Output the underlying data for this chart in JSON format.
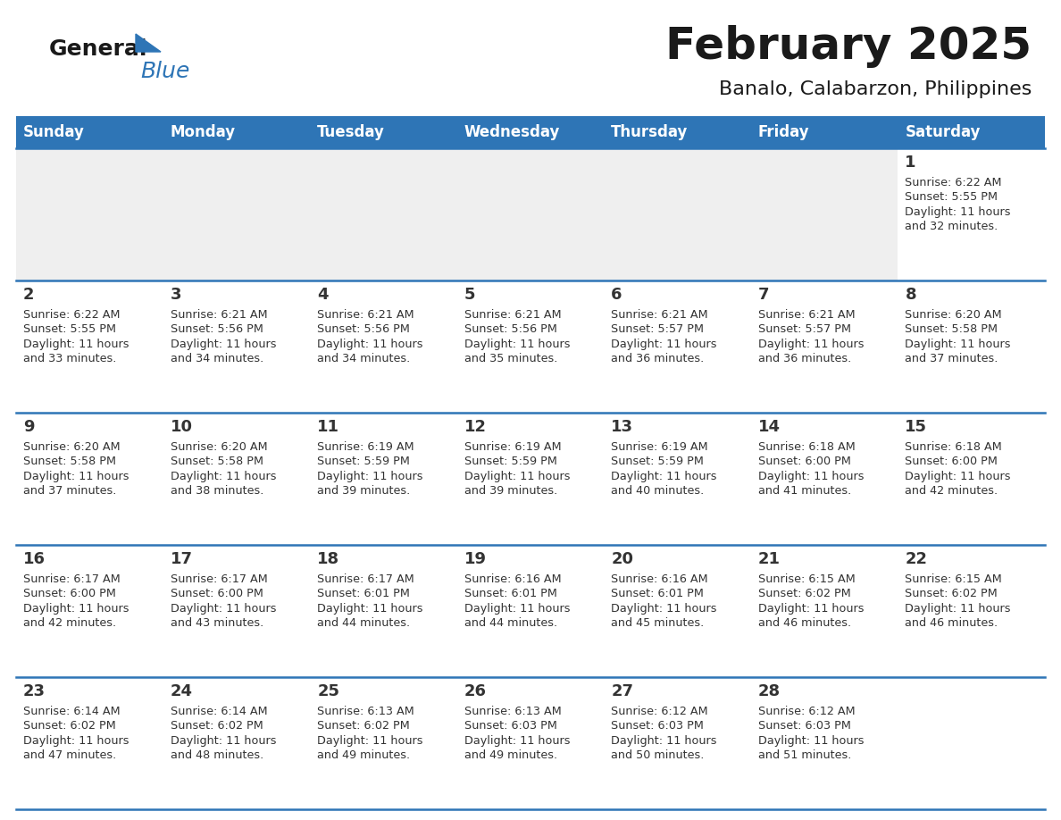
{
  "title": "February 2025",
  "subtitle": "Banalo, Calabarzon, Philippines",
  "days_of_week": [
    "Sunday",
    "Monday",
    "Tuesday",
    "Wednesday",
    "Thursday",
    "Friday",
    "Saturday"
  ],
  "header_bg": "#2e75b6",
  "header_text_color": "#ffffff",
  "cell_bg_light": "#efefef",
  "cell_bg_white": "#ffffff",
  "divider_color": "#2e75b6",
  "text_color": "#333333",
  "title_color": "#1a1a1a",
  "weeks": [
    [
      {
        "day": null,
        "info": null
      },
      {
        "day": null,
        "info": null
      },
      {
        "day": null,
        "info": null
      },
      {
        "day": null,
        "info": null
      },
      {
        "day": null,
        "info": null
      },
      {
        "day": null,
        "info": null
      },
      {
        "day": 1,
        "sunrise": "6:22 AM",
        "sunset": "5:55 PM",
        "dl1": "Daylight: 11 hours",
        "dl2": "and 32 minutes."
      }
    ],
    [
      {
        "day": 2,
        "sunrise": "6:22 AM",
        "sunset": "5:55 PM",
        "dl1": "Daylight: 11 hours",
        "dl2": "and 33 minutes."
      },
      {
        "day": 3,
        "sunrise": "6:21 AM",
        "sunset": "5:56 PM",
        "dl1": "Daylight: 11 hours",
        "dl2": "and 34 minutes."
      },
      {
        "day": 4,
        "sunrise": "6:21 AM",
        "sunset": "5:56 PM",
        "dl1": "Daylight: 11 hours",
        "dl2": "and 34 minutes."
      },
      {
        "day": 5,
        "sunrise": "6:21 AM",
        "sunset": "5:56 PM",
        "dl1": "Daylight: 11 hours",
        "dl2": "and 35 minutes."
      },
      {
        "day": 6,
        "sunrise": "6:21 AM",
        "sunset": "5:57 PM",
        "dl1": "Daylight: 11 hours",
        "dl2": "and 36 minutes."
      },
      {
        "day": 7,
        "sunrise": "6:21 AM",
        "sunset": "5:57 PM",
        "dl1": "Daylight: 11 hours",
        "dl2": "and 36 minutes."
      },
      {
        "day": 8,
        "sunrise": "6:20 AM",
        "sunset": "5:58 PM",
        "dl1": "Daylight: 11 hours",
        "dl2": "and 37 minutes."
      }
    ],
    [
      {
        "day": 9,
        "sunrise": "6:20 AM",
        "sunset": "5:58 PM",
        "dl1": "Daylight: 11 hours",
        "dl2": "and 37 minutes."
      },
      {
        "day": 10,
        "sunrise": "6:20 AM",
        "sunset": "5:58 PM",
        "dl1": "Daylight: 11 hours",
        "dl2": "and 38 minutes."
      },
      {
        "day": 11,
        "sunrise": "6:19 AM",
        "sunset": "5:59 PM",
        "dl1": "Daylight: 11 hours",
        "dl2": "and 39 minutes."
      },
      {
        "day": 12,
        "sunrise": "6:19 AM",
        "sunset": "5:59 PM",
        "dl1": "Daylight: 11 hours",
        "dl2": "and 39 minutes."
      },
      {
        "day": 13,
        "sunrise": "6:19 AM",
        "sunset": "5:59 PM",
        "dl1": "Daylight: 11 hours",
        "dl2": "and 40 minutes."
      },
      {
        "day": 14,
        "sunrise": "6:18 AM",
        "sunset": "6:00 PM",
        "dl1": "Daylight: 11 hours",
        "dl2": "and 41 minutes."
      },
      {
        "day": 15,
        "sunrise": "6:18 AM",
        "sunset": "6:00 PM",
        "dl1": "Daylight: 11 hours",
        "dl2": "and 42 minutes."
      }
    ],
    [
      {
        "day": 16,
        "sunrise": "6:17 AM",
        "sunset": "6:00 PM",
        "dl1": "Daylight: 11 hours",
        "dl2": "and 42 minutes."
      },
      {
        "day": 17,
        "sunrise": "6:17 AM",
        "sunset": "6:00 PM",
        "dl1": "Daylight: 11 hours",
        "dl2": "and 43 minutes."
      },
      {
        "day": 18,
        "sunrise": "6:17 AM",
        "sunset": "6:01 PM",
        "dl1": "Daylight: 11 hours",
        "dl2": "and 44 minutes."
      },
      {
        "day": 19,
        "sunrise": "6:16 AM",
        "sunset": "6:01 PM",
        "dl1": "Daylight: 11 hours",
        "dl2": "and 44 minutes."
      },
      {
        "day": 20,
        "sunrise": "6:16 AM",
        "sunset": "6:01 PM",
        "dl1": "Daylight: 11 hours",
        "dl2": "and 45 minutes."
      },
      {
        "day": 21,
        "sunrise": "6:15 AM",
        "sunset": "6:02 PM",
        "dl1": "Daylight: 11 hours",
        "dl2": "and 46 minutes."
      },
      {
        "day": 22,
        "sunrise": "6:15 AM",
        "sunset": "6:02 PM",
        "dl1": "Daylight: 11 hours",
        "dl2": "and 46 minutes."
      }
    ],
    [
      {
        "day": 23,
        "sunrise": "6:14 AM",
        "sunset": "6:02 PM",
        "dl1": "Daylight: 11 hours",
        "dl2": "and 47 minutes."
      },
      {
        "day": 24,
        "sunrise": "6:14 AM",
        "sunset": "6:02 PM",
        "dl1": "Daylight: 11 hours",
        "dl2": "and 48 minutes."
      },
      {
        "day": 25,
        "sunrise": "6:13 AM",
        "sunset": "6:02 PM",
        "dl1": "Daylight: 11 hours",
        "dl2": "and 49 minutes."
      },
      {
        "day": 26,
        "sunrise": "6:13 AM",
        "sunset": "6:03 PM",
        "dl1": "Daylight: 11 hours",
        "dl2": "and 49 minutes."
      },
      {
        "day": 27,
        "sunrise": "6:12 AM",
        "sunset": "6:03 PM",
        "dl1": "Daylight: 11 hours",
        "dl2": "and 50 minutes."
      },
      {
        "day": 28,
        "sunrise": "6:12 AM",
        "sunset": "6:03 PM",
        "dl1": "Daylight: 11 hours",
        "dl2": "and 51 minutes."
      },
      {
        "day": null,
        "info": null
      }
    ]
  ],
  "logo_general_color": "#1a1a1a",
  "logo_blue_color": "#2e75b6"
}
